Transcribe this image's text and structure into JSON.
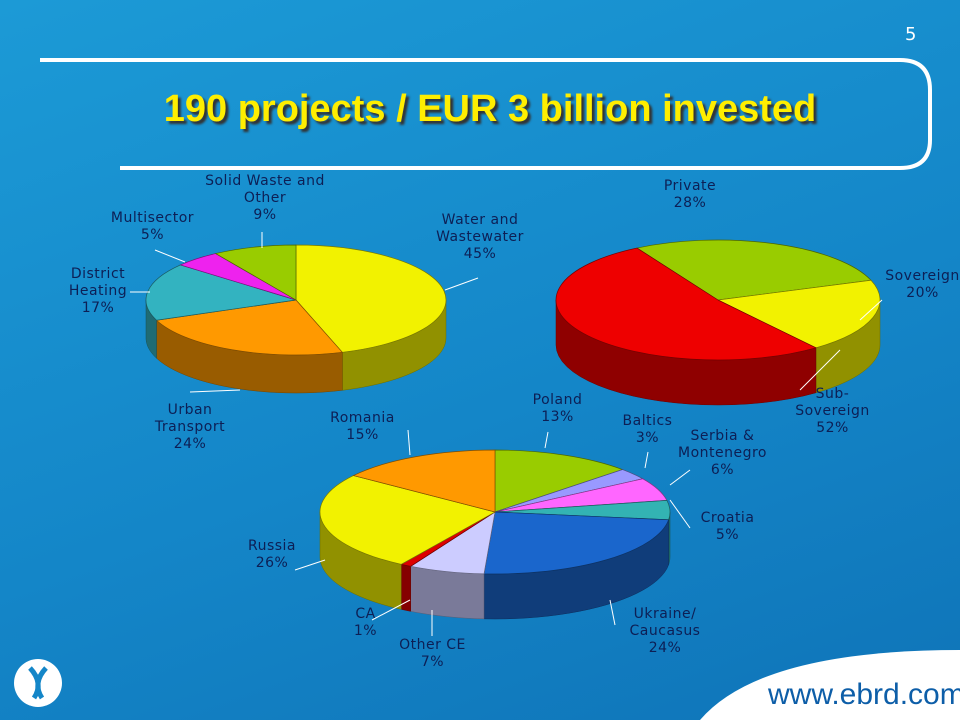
{
  "slide_number": "5",
  "title": "190 projects / EUR 3 billion invested",
  "footer": "www.ebrd.com",
  "chart_data": [
    {
      "type": "pie",
      "categories": [
        "Water and Wastewater",
        "Urban Transport",
        "District Heating",
        "Multisector",
        "Solid Waste and Other"
      ],
      "values": [
        45,
        24,
        17,
        5,
        9
      ],
      "value_labels": [
        "45%",
        "24%",
        "17%",
        "5%",
        "9%"
      ],
      "colors": [
        "#f2f200",
        "#ff9900",
        "#33b3c0",
        "#ee22ee",
        "#99cc00"
      ]
    },
    {
      "type": "pie",
      "categories": [
        "Private",
        "Sovereign",
        "Sub-Sovereign"
      ],
      "values": [
        28,
        20,
        52
      ],
      "value_labels": [
        "28%",
        "20%",
        "52%"
      ],
      "colors": [
        "#99cc00",
        "#f2f200",
        "#ee0000"
      ]
    },
    {
      "type": "pie",
      "categories": [
        "Poland",
        "Baltics",
        "Serbia & Montenegro",
        "Croatia",
        "Ukraine/ Caucasus",
        "Other CE",
        "CA",
        "Russia",
        "Romania"
      ],
      "values": [
        13,
        3,
        6,
        5,
        24,
        7,
        1,
        26,
        15
      ],
      "value_labels": [
        "13%",
        "3%",
        "6%",
        "5%",
        "24%",
        "7%",
        "1%",
        "26%",
        "15%"
      ],
      "colors": [
        "#99cc00",
        "#9999ff",
        "#ff66ff",
        "#33b3b3",
        "#1a66cc",
        "#ccccff",
        "#dd0000",
        "#f2f200",
        "#ff9900"
      ]
    }
  ]
}
